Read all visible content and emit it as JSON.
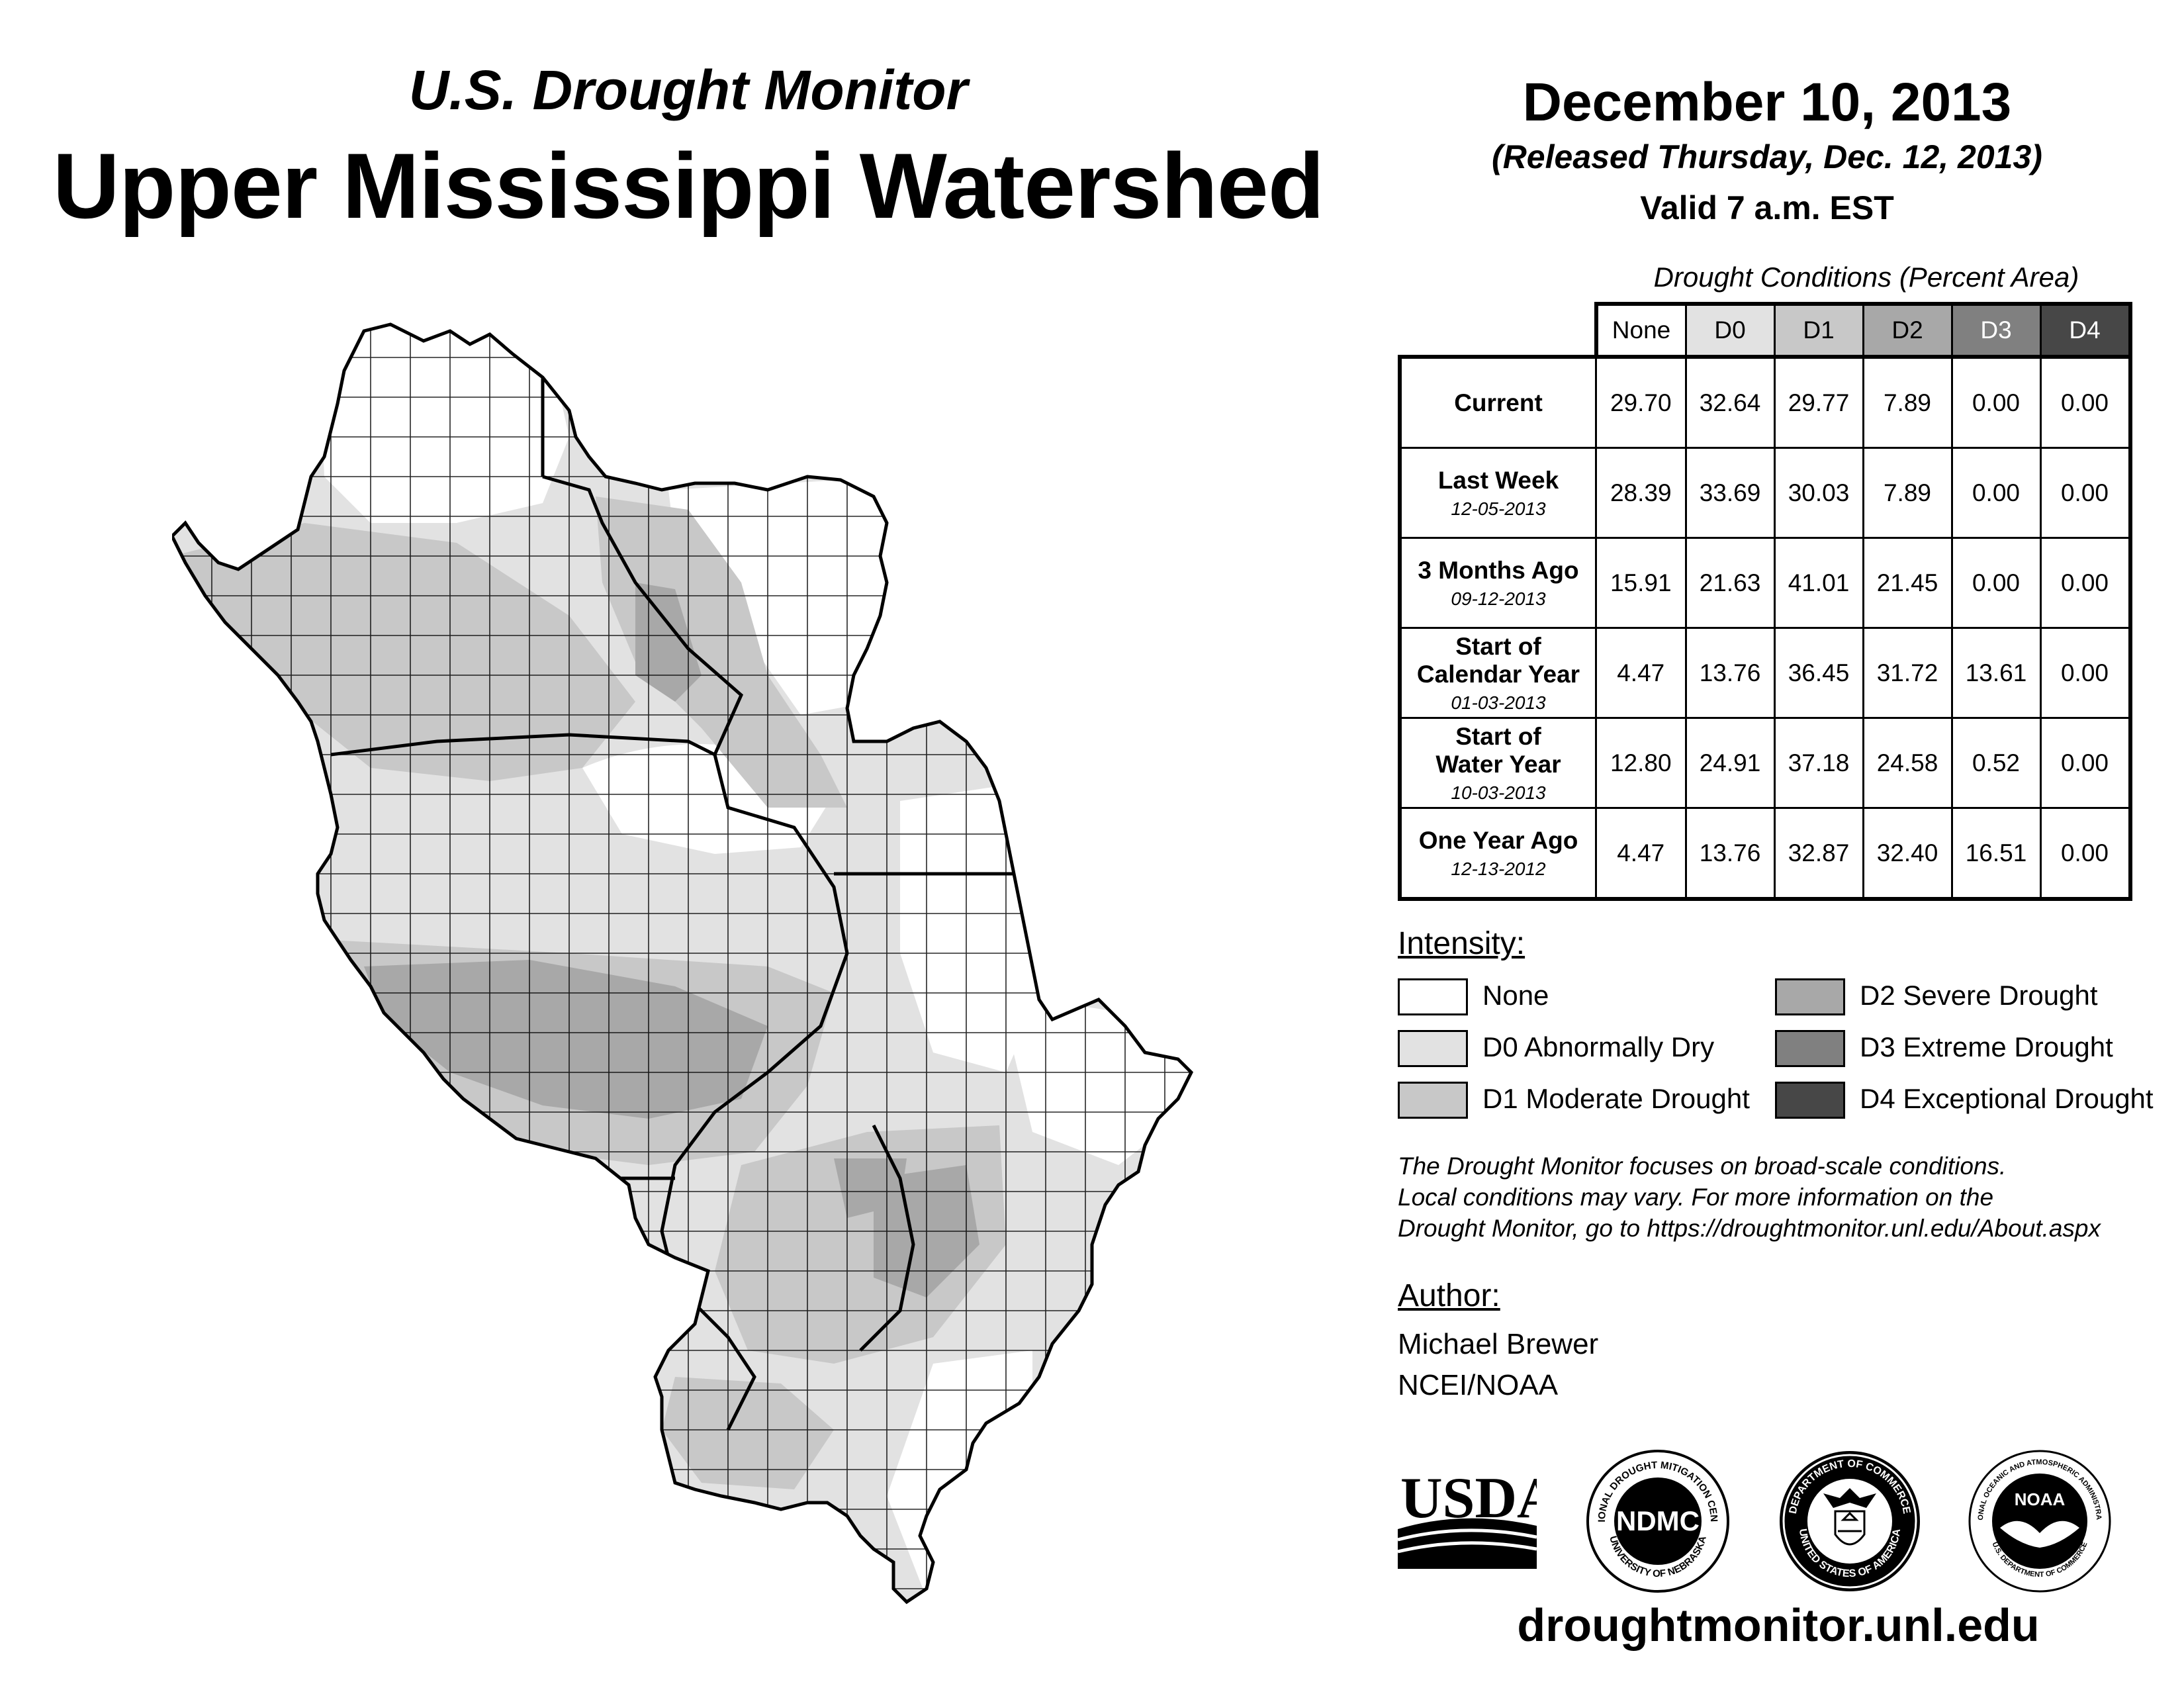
{
  "header": {
    "subtitle": "U.S. Drought Monitor",
    "title": "Upper Mississippi Watershed",
    "date": "December 10, 2013",
    "released": "(Released Thursday, Dec. 12, 2013)",
    "valid": "Valid 7 a.m. EST"
  },
  "table": {
    "caption": "Drought Conditions (Percent Area)",
    "columns": [
      "None",
      "D0",
      "D1",
      "D2",
      "D3",
      "D4"
    ],
    "column_colors": [
      "#ffffff",
      "#e2e2e2",
      "#c8c8c8",
      "#a8a8a8",
      "#808080",
      "#474747"
    ],
    "rows": [
      {
        "label": "Current",
        "label2": "",
        "sub": "",
        "values": [
          "29.70",
          "32.64",
          "29.77",
          "7.89",
          "0.00",
          "0.00"
        ]
      },
      {
        "label": "Last Week",
        "label2": "",
        "sub": "12-05-2013",
        "values": [
          "28.39",
          "33.69",
          "30.03",
          "7.89",
          "0.00",
          "0.00"
        ]
      },
      {
        "label": "3 Months Ago",
        "label2": "",
        "sub": "09-12-2013",
        "values": [
          "15.91",
          "21.63",
          "41.01",
          "21.45",
          "0.00",
          "0.00"
        ]
      },
      {
        "label": "Start of",
        "label2": "Calendar Year",
        "sub": "01-03-2013",
        "values": [
          "4.47",
          "13.76",
          "36.45",
          "31.72",
          "13.61",
          "0.00"
        ]
      },
      {
        "label": "Start of",
        "label2": "Water Year",
        "sub": "10-03-2013",
        "values": [
          "12.80",
          "24.91",
          "37.18",
          "24.58",
          "0.52",
          "0.00"
        ]
      },
      {
        "label": "One Year Ago",
        "label2": "",
        "sub": "12-13-2012",
        "values": [
          "4.47",
          "13.76",
          "32.87",
          "32.40",
          "16.51",
          "0.00"
        ]
      }
    ]
  },
  "legend": {
    "title": "Intensity:",
    "items": [
      {
        "label": "None",
        "color": "#ffffff"
      },
      {
        "label": "D0 Abnormally Dry",
        "color": "#e2e2e2"
      },
      {
        "label": "D1 Moderate Drought",
        "color": "#c8c8c8"
      },
      {
        "label": "D2 Severe Drought",
        "color": "#a8a8a8"
      },
      {
        "label": "D3 Extreme Drought",
        "color": "#808080"
      },
      {
        "label": "D4 Exceptional Drought",
        "color": "#474747"
      }
    ]
  },
  "note": {
    "line1": "The Drought Monitor focuses on broad-scale conditions.",
    "line2": "Local conditions may vary. For more information on the",
    "line3": "Drought Monitor, go to https://droughtmonitor.unl.edu/About.aspx"
  },
  "author": {
    "title": "Author:",
    "name": "Michael Brewer",
    "org": "NCEI/NOAA"
  },
  "logos": {
    "usda": "USDA",
    "ndmc": "NDMC",
    "ndmc_ring_top": "NATIONAL DROUGHT MITIGATION CENTER",
    "ndmc_ring_bottom": "UNIVERSITY OF NEBRASKA",
    "doc_ring_top": "DEPARTMENT OF COMMERCE",
    "doc_ring_bottom": "UNITED STATES OF AMERICA",
    "noaa": "NOAA",
    "noaa_ring_top": "NATIONAL OCEANIC AND ATMOSPHERIC ADMINISTRATION",
    "noaa_ring_bottom": "U.S. DEPARTMENT OF COMMERCE"
  },
  "website": "droughtmonitor.unl.edu",
  "map": {
    "region": "Upper Mississippi Watershed"
  }
}
